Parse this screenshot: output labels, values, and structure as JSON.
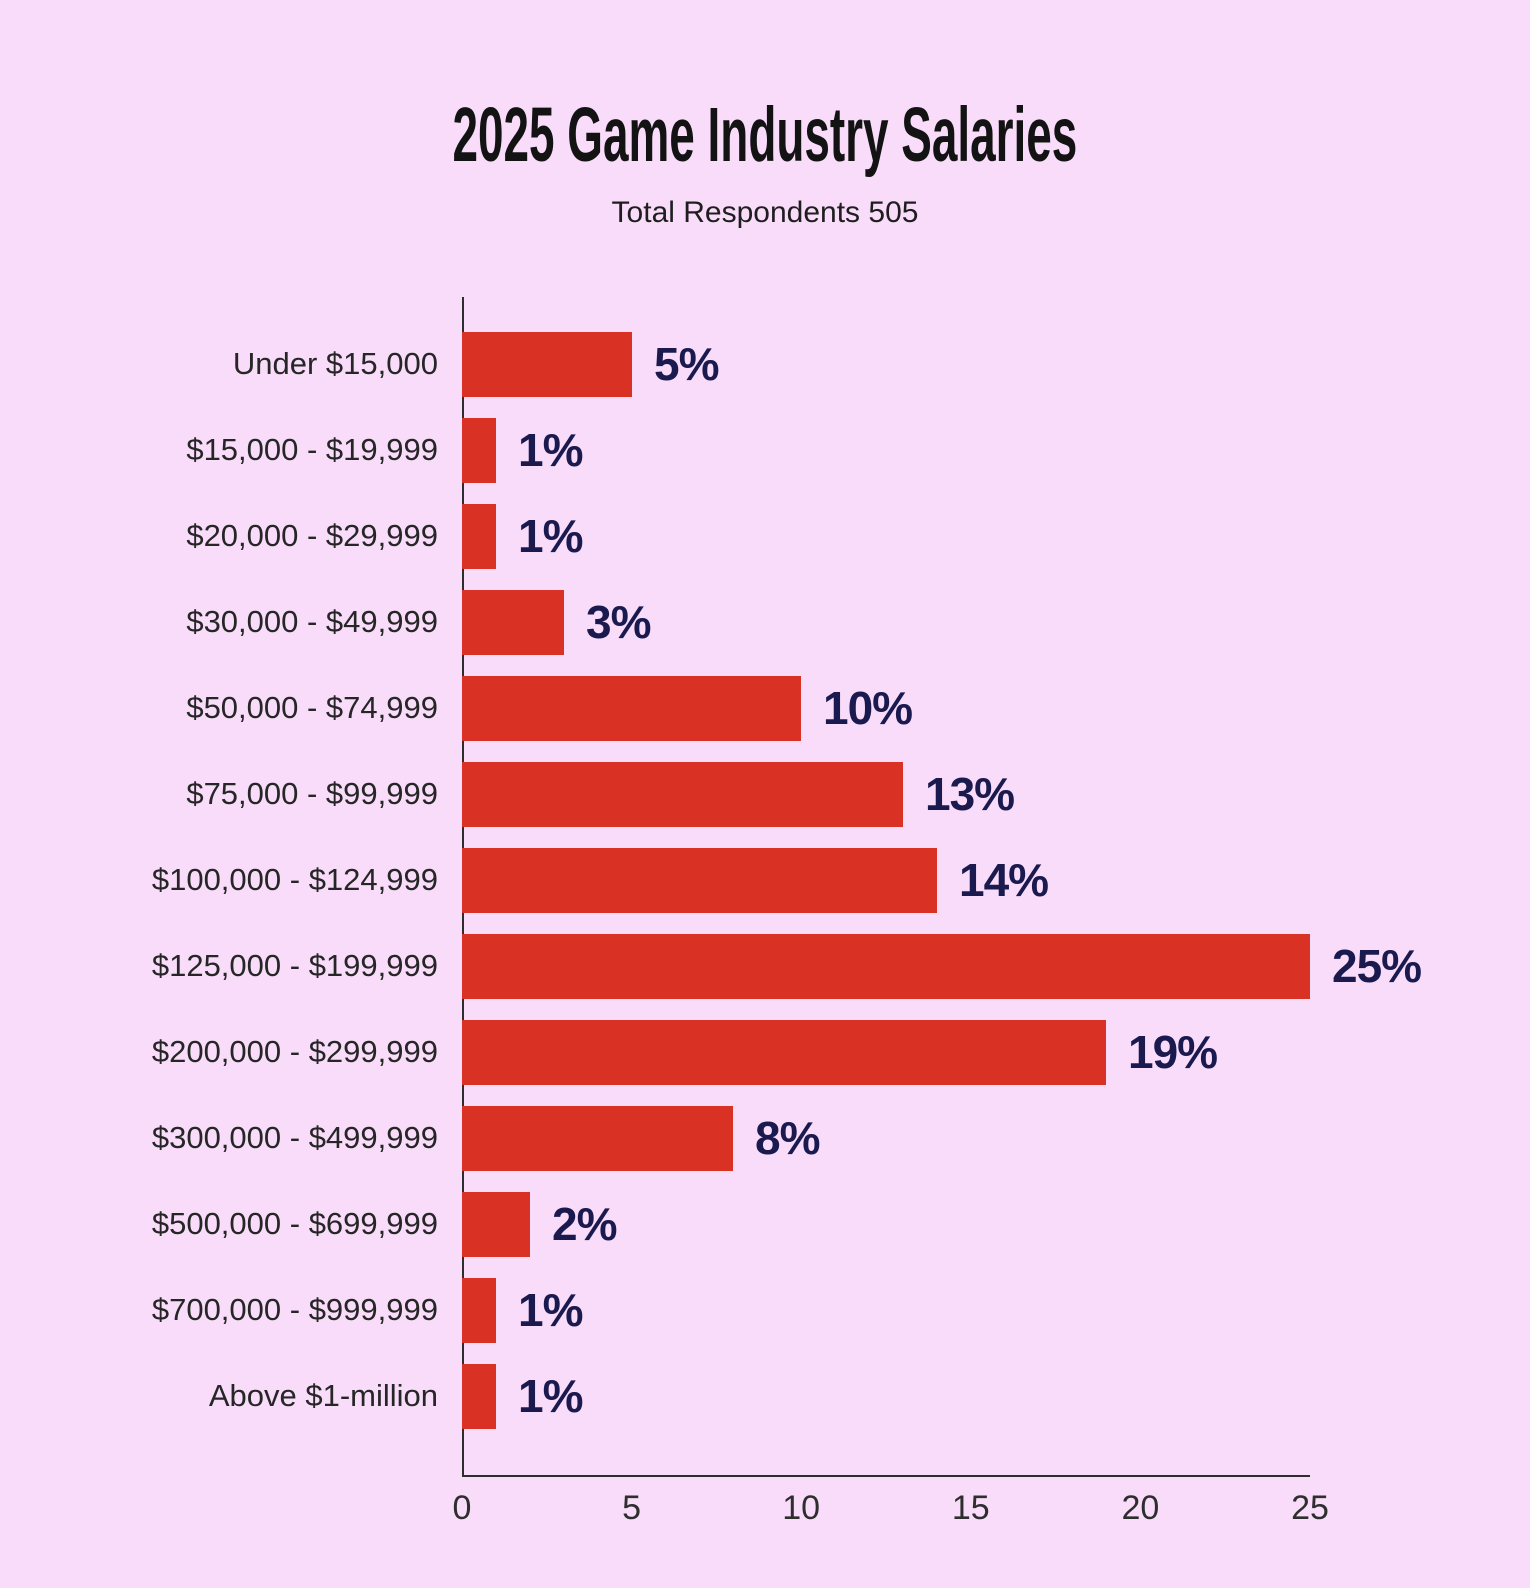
{
  "header": {
    "title": "2025 Game Industry Salaries",
    "subtitle": "Total Respondents 505"
  },
  "chart_data": {
    "type": "bar",
    "orientation": "horizontal",
    "title": "2025 Game Industry Salaries",
    "subtitle": "Total Respondents 505",
    "categories": [
      "Under $15,000",
      "$15,000 - $19,999",
      "$20,000 - $29,999",
      "$30,000 - $49,999",
      "$50,000 - $74,999",
      "$75,000 - $99,999",
      "$100,000 - $124,999",
      "$125,000 - $199,999",
      "$200,000 - $299,999",
      "$300,000 - $499,999",
      "$500,000 - $699,999",
      "$700,000 - $999,999",
      "Above $1-million"
    ],
    "values": [
      5,
      1,
      1,
      3,
      10,
      13,
      14,
      25,
      19,
      8,
      2,
      1,
      1
    ],
    "value_suffix": "%",
    "xlabel": "",
    "ylabel": "",
    "xlim": [
      0,
      25
    ],
    "x_ticks": [
      0,
      5,
      10,
      15,
      20,
      25
    ],
    "grid": false,
    "legend": "none",
    "colors": {
      "background": "#f8dcf9",
      "bar": "#d93123",
      "value_label": "#1b1a4e",
      "category_label": "#262626",
      "axis": "#2e2e2e"
    }
  }
}
